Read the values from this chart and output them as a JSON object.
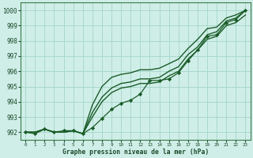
{
  "xlabel": "Graphe pression niveau de la mer (hPa)",
  "ylim": [
    991.5,
    1000.5
  ],
  "xlim": [
    -0.5,
    23.5
  ],
  "yticks": [
    992,
    993,
    994,
    995,
    996,
    997,
    998,
    999,
    1000
  ],
  "xticks": [
    0,
    1,
    2,
    3,
    4,
    5,
    6,
    7,
    8,
    9,
    10,
    11,
    12,
    13,
    14,
    15,
    16,
    17,
    18,
    19,
    20,
    21,
    22,
    23
  ],
  "background_color": "#d0eee8",
  "grid_color": "#a8d8cc",
  "line_color": "#1a5c28",
  "series": {
    "upper": [
      992.0,
      992.0,
      992.2,
      992.0,
      992.0,
      992.1,
      991.9,
      993.8,
      995.0,
      995.6,
      995.8,
      995.9,
      996.1,
      996.1,
      996.2,
      996.5,
      996.8,
      997.5,
      998.1,
      998.8,
      998.9,
      999.5,
      999.7,
      1000.0
    ],
    "mid_upper": [
      992.0,
      992.0,
      992.2,
      992.0,
      992.0,
      992.1,
      991.9,
      993.3,
      994.3,
      994.9,
      995.2,
      995.3,
      995.5,
      995.5,
      995.6,
      996.0,
      996.3,
      997.1,
      997.6,
      998.4,
      998.6,
      999.3,
      999.5,
      1000.0
    ],
    "mid_lower": [
      992.0,
      992.0,
      992.2,
      992.0,
      992.0,
      992.1,
      991.9,
      993.0,
      994.0,
      994.6,
      994.9,
      995.0,
      995.2,
      995.2,
      995.3,
      995.7,
      996.0,
      996.8,
      997.4,
      998.1,
      998.3,
      999.0,
      999.2,
      999.7
    ],
    "marked": [
      992.0,
      991.9,
      992.2,
      992.0,
      992.1,
      992.1,
      991.9,
      992.3,
      992.9,
      993.5,
      993.9,
      994.1,
      994.5,
      995.4,
      995.4,
      995.5,
      995.9,
      996.7,
      997.4,
      998.3,
      998.4,
      999.2,
      999.4,
      1000.0
    ]
  }
}
